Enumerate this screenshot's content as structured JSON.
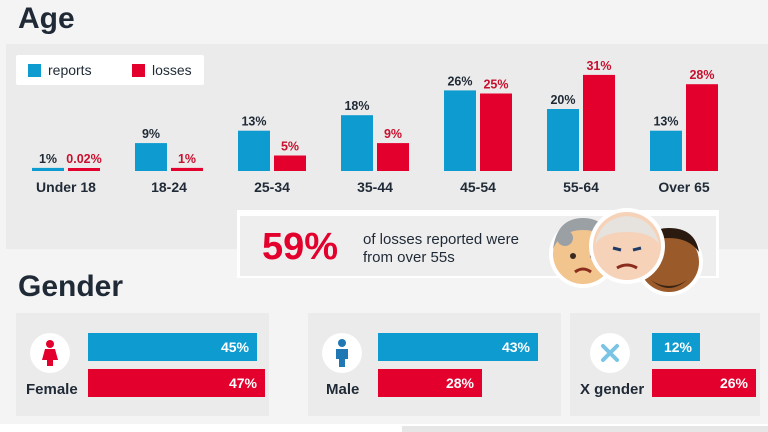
{
  "age_title": "Age",
  "gender_title": "Gender",
  "legend": {
    "reports_label": "reports",
    "losses_label": "losses"
  },
  "colors": {
    "reports": "#0d9bd0",
    "losses": "#e3002c"
  },
  "chart_data": [
    {
      "type": "bar",
      "title": "Age",
      "categories": [
        "Under 18",
        "18-24",
        "25-34",
        "35-44",
        "45-54",
        "55-64",
        "Over 65"
      ],
      "series": [
        {
          "name": "reports",
          "values": [
            1,
            9,
            13,
            18,
            26,
            20,
            13
          ],
          "labels": [
            "1%",
            "9%",
            "13%",
            "18%",
            "26%",
            "20%",
            "13%"
          ]
        },
        {
          "name": "losses",
          "values": [
            0.02,
            1,
            5,
            9,
            25,
            31,
            28
          ],
          "labels": [
            "0.02%",
            "1%",
            "5%",
            "9%",
            "25%",
            "31%",
            "28%"
          ]
        }
      ],
      "legend": "top-left"
    },
    {
      "type": "bar",
      "title": "Gender",
      "categories": [
        "Female",
        "Male",
        "X gender"
      ],
      "series": [
        {
          "name": "reports",
          "values": [
            45,
            43,
            12
          ],
          "labels": [
            "45%",
            "43%",
            "12%"
          ]
        },
        {
          "name": "losses",
          "values": [
            47,
            28,
            26
          ],
          "labels": [
            "47%",
            "28%",
            "26%"
          ]
        }
      ]
    }
  ],
  "callout": {
    "percent": "59%",
    "text": "of losses reported were from over 55s"
  },
  "gender": [
    {
      "label": "Female",
      "icon": "female-icon"
    },
    {
      "label": "Male",
      "icon": "male-icon"
    },
    {
      "label": "X gender",
      "icon": "x-gender-icon"
    }
  ]
}
